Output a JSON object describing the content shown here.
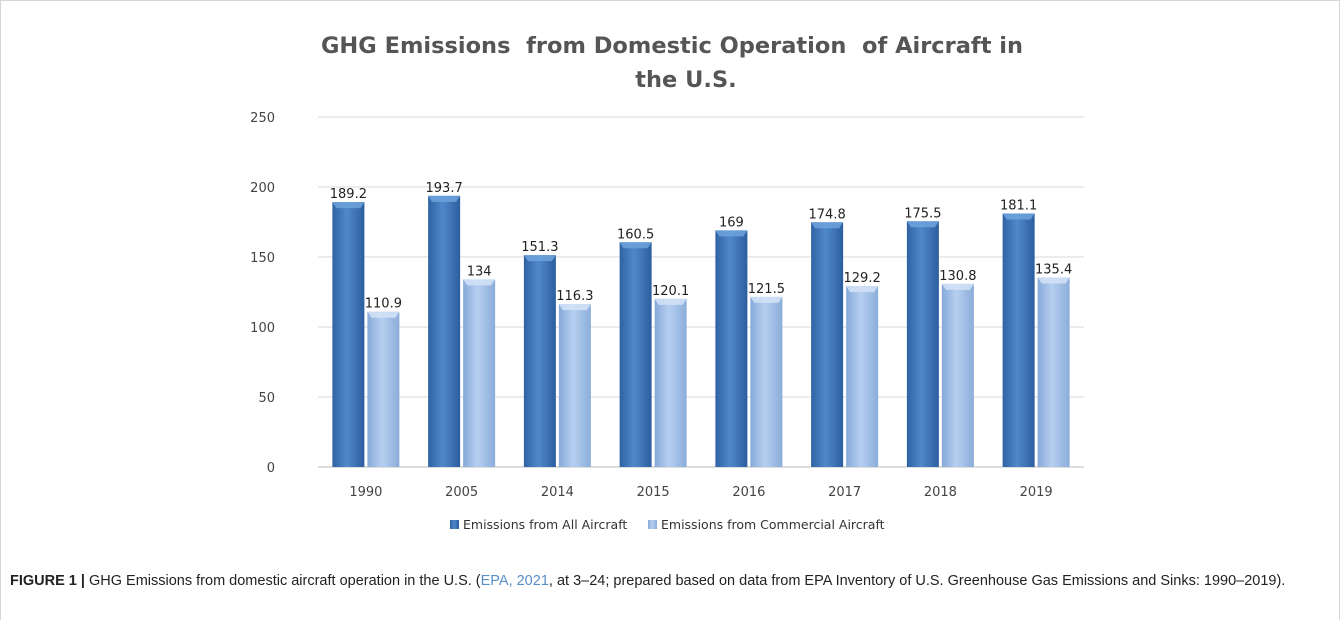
{
  "chart_data": {
    "type": "bar",
    "title_line1": "GHG Emissions  from Domestic Operation  of Aircraft in",
    "title_line2": "the U.S.",
    "categories": [
      "1990",
      "2005",
      "2014",
      "2015",
      "2016",
      "2017",
      "2018",
      "2019"
    ],
    "series": [
      {
        "name": "Emissions from All Aircraft",
        "values": [
          189.2,
          193.7,
          151.3,
          160.5,
          169,
          174.8,
          175.5,
          181.1
        ],
        "labels": [
          "189.2",
          "193.7",
          "151.3",
          "160.5",
          "169",
          "174.8",
          "175.5",
          "181.1"
        ],
        "color": "#3f78b8"
      },
      {
        "name": "Emissions from Commercial Aircraft",
        "values": [
          110.9,
          134,
          116.3,
          120.1,
          121.5,
          129.2,
          130.8,
          135.4
        ],
        "labels": [
          "110.9",
          "134",
          "116.3",
          "120.1",
          "121.5",
          "129.2",
          "130.8",
          "135.4"
        ],
        "color": "#9cbde6"
      }
    ],
    "ylim": [
      0,
      250
    ],
    "yticks": [
      "0",
      "50",
      "100",
      "150",
      "200",
      "250"
    ],
    "grid": true,
    "legend_position": "bottom"
  },
  "caption": {
    "label": "FIGURE 1 |",
    "text_before": " GHG Emissions from domestic aircraft operation in the U.S. (",
    "reference": "EPA, 2021",
    "text_after": ", at 3–24; prepared based on data from EPA Inventory of U.S. Greenhouse Gas Emissions and Sinks: 1990–2019)."
  }
}
